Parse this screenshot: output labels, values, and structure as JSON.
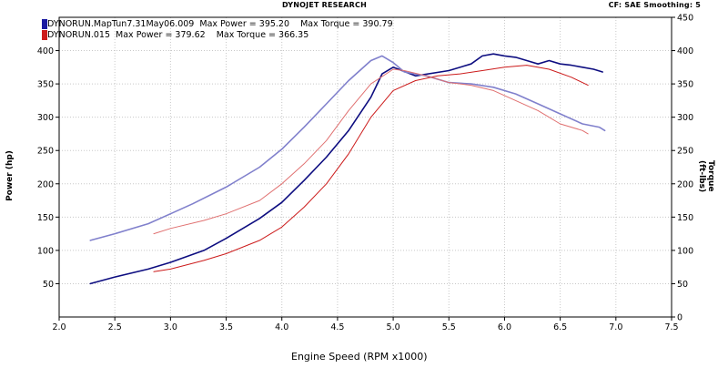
{
  "header": {
    "center": "DYNOJET RESEARCH",
    "right": "CF: SAE  Smoothing: 5"
  },
  "legend": [
    {
      "label": "DYNORUN.MapTun7.31May06.009  Max Power = 395.20    Max Torque = 390.79",
      "color": "#1a1aa0"
    },
    {
      "label": "DYNORUN.015  Max Power = 379.62    Max Torque = 366.35",
      "color": "#cc1b1b"
    }
  ],
  "chart_data": {
    "type": "line",
    "xlabel": "Engine Speed (RPM x1000)",
    "ylabel_left": "Power (hp)",
    "ylabel_right": "Torque (ft-lbs)",
    "xlim": [
      2.0,
      7.5
    ],
    "ylim": [
      0,
      450
    ],
    "x_ticks": [
      "2.0",
      "2.5",
      "3.0",
      "3.5",
      "4.0",
      "4.5",
      "5.0",
      "5.5",
      "6.0",
      "6.5",
      "7.0",
      "7.5"
    ],
    "y_ticks_left": [
      "50",
      "100",
      "150",
      "200",
      "250",
      "300",
      "350",
      "400"
    ],
    "y_ticks_right": [
      "0",
      "50",
      "100",
      "150",
      "200",
      "250",
      "300",
      "350",
      "400",
      "450"
    ],
    "grid": true,
    "series": [
      {
        "name": "DYNORUN.MapTun7.31May06.009 Power",
        "color": "#0d0d80",
        "width": 1.6,
        "x": [
          2.28,
          2.5,
          2.8,
          3.0,
          3.3,
          3.5,
          3.8,
          4.0,
          4.2,
          4.4,
          4.6,
          4.8,
          4.9,
          5.0,
          5.2,
          5.5,
          5.7,
          5.8,
          5.9,
          6.0,
          6.1,
          6.2,
          6.3,
          6.4,
          6.5,
          6.6,
          6.7,
          6.8,
          6.88
        ],
        "y": [
          50,
          60,
          72,
          82,
          100,
          118,
          148,
          172,
          205,
          240,
          280,
          330,
          365,
          375,
          362,
          370,
          380,
          392,
          395,
          392,
          390,
          385,
          380,
          385,
          380,
          378,
          375,
          372,
          368
        ]
      },
      {
        "name": "DYNORUN.MapTun7.31May06.009 Torque",
        "color": "#8080cc",
        "width": 1.6,
        "x": [
          2.28,
          2.5,
          2.8,
          3.0,
          3.2,
          3.5,
          3.8,
          4.0,
          4.2,
          4.4,
          4.6,
          4.8,
          4.9,
          5.0,
          5.1,
          5.3,
          5.5,
          5.7,
          5.9,
          6.1,
          6.3,
          6.5,
          6.7,
          6.85,
          6.9
        ],
        "y": [
          115,
          125,
          140,
          155,
          170,
          195,
          225,
          252,
          285,
          320,
          355,
          385,
          392,
          382,
          368,
          362,
          352,
          350,
          345,
          335,
          320,
          305,
          290,
          285,
          280
        ]
      },
      {
        "name": "DYNORUN.015 Power",
        "color": "#cc1b1b",
        "width": 1.0,
        "x": [
          2.85,
          3.0,
          3.3,
          3.5,
          3.8,
          4.0,
          4.2,
          4.4,
          4.6,
          4.8,
          5.0,
          5.2,
          5.4,
          5.6,
          5.8,
          6.0,
          6.2,
          6.4,
          6.6,
          6.75
        ],
        "y": [
          68,
          72,
          85,
          95,
          115,
          135,
          165,
          200,
          245,
          300,
          340,
          355,
          362,
          365,
          370,
          375,
          378,
          372,
          360,
          348
        ]
      },
      {
        "name": "DYNORUN.015 Torque",
        "color": "#e07070",
        "width": 1.0,
        "x": [
          2.85,
          3.0,
          3.3,
          3.5,
          3.8,
          4.0,
          4.2,
          4.4,
          4.6,
          4.8,
          5.0,
          5.1,
          5.3,
          5.5,
          5.7,
          5.9,
          6.1,
          6.3,
          6.5,
          6.7,
          6.75
        ],
        "y": [
          125,
          133,
          145,
          155,
          175,
          200,
          230,
          265,
          310,
          350,
          372,
          370,
          362,
          352,
          348,
          340,
          325,
          310,
          290,
          280,
          275
        ]
      }
    ]
  }
}
